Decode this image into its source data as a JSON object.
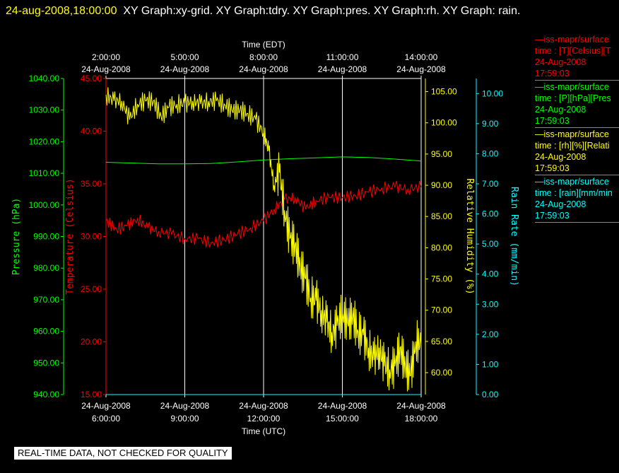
{
  "header": {
    "timestamp": "24-aug-2008,18:00:00",
    "titles": "XY Graph:xy-grid.  XY Graph:tdry.  XY Graph:pres.  XY Graph:rh.  XY Graph: rain."
  },
  "notice": "REAL-TIME DATA, NOT CHECKED FOR QUALITY",
  "legend": [
    {
      "name": "iss-mapr/surface",
      "label": "time : [T][Celsius][T",
      "date": "24-Aug-2008",
      "time": "17:59:03",
      "color": "#ff0000"
    },
    {
      "name": "iss-mapr/surface",
      "label": "time : [P][hPa][Pres",
      "date": "24-Aug-2008",
      "time": "17:59:03",
      "color": "#00ff00"
    },
    {
      "name": "iss-mapr/surface",
      "label": "time : [rh][%][Relati",
      "date": "24-Aug-2008",
      "time": "17:59:03",
      "color": "#ffff00"
    },
    {
      "name": "iss-mapr/surface",
      "label": "time : [rain][mm/min",
      "date": "24-Aug-2008",
      "time": "17:59:03",
      "color": "#00ffff"
    }
  ],
  "chart_data": {
    "type": "line",
    "xlabel_top": "Time (EDT)",
    "xlabel_bottom": "Time (UTC)",
    "x_hours_utc": [
      6,
      18
    ],
    "top_ticks": [
      {
        "t": "2:00:00",
        "d": "24-Aug-2008"
      },
      {
        "t": "5:00:00",
        "d": "24-Aug-2008"
      },
      {
        "t": "8:00:00",
        "d": "24-Aug-2008"
      },
      {
        "t": "11:00:00",
        "d": "24-Aug-2008"
      },
      {
        "t": "14:00:00",
        "d": "24-Aug-2008"
      }
    ],
    "bottom_ticks": [
      {
        "t": "6:00:00",
        "d": "24-Aug-2008"
      },
      {
        "t": "9:00:00",
        "d": "24-Aug-2008"
      },
      {
        "t": "12:00:00",
        "d": "24-Aug-2008"
      },
      {
        "t": "15:00:00",
        "d": "24-Aug-2008"
      },
      {
        "t": "18:00:00",
        "d": "24-Aug-2008"
      }
    ],
    "axes": {
      "pressure": {
        "label": "Pressure (hPa)",
        "color": "#00ff00",
        "range": [
          940,
          1040
        ],
        "ticks": [
          "1040.00",
          "1030.00",
          "1020.00",
          "1010.00",
          "1000.00",
          "990.00",
          "980.00",
          "970.00",
          "960.00",
          "950.00",
          "940.00"
        ]
      },
      "temperature": {
        "label": "Temperature (Celsius)",
        "color": "#ff0000",
        "range": [
          15,
          45
        ],
        "ticks": [
          "45.00",
          "40.00",
          "35.00",
          "30.00",
          "25.00",
          "20.00",
          "15.00"
        ]
      },
      "humidity": {
        "label": "Relative Humidity (%)",
        "color": "#ffff00",
        "range": [
          56.5,
          107.1
        ],
        "ticks": [
          "105.00",
          "100.00",
          "95.00",
          "90.00",
          "85.00",
          "80.00",
          "75.00",
          "70.00",
          "65.00",
          "60.00"
        ]
      },
      "rain": {
        "label": "Rain Rate (mm/min)",
        "color": "#00ffff",
        "range": [
          0,
          10.5
        ],
        "ticks": [
          "10.00",
          "9.00",
          "8.00",
          "7.00",
          "6.00",
          "5.00",
          "4.00",
          "3.00",
          "2.00",
          "1.00",
          "0.00"
        ]
      }
    },
    "series": [
      {
        "name": "tdry",
        "axis": "temperature",
        "color": "#ff0000",
        "x": [
          6.0,
          6.4,
          6.8,
          7.2,
          7.6,
          8.0,
          8.5,
          9.0,
          9.5,
          10.0,
          10.5,
          11.0,
          11.5,
          12.0,
          12.4,
          12.8,
          13.2,
          13.6,
          14.0,
          14.5,
          15.0,
          15.5,
          16.0,
          16.5,
          17.0,
          17.5,
          18.0
        ],
        "y": [
          31.5,
          30.7,
          31.0,
          31.7,
          30.8,
          30.5,
          30.2,
          29.8,
          29.8,
          29.4,
          29.7,
          30.2,
          30.8,
          31.5,
          32.6,
          33.5,
          33.7,
          32.6,
          33.4,
          33.7,
          33.7,
          33.9,
          34.2,
          34.6,
          34.7,
          34.5,
          34.7
        ]
      },
      {
        "name": "pres",
        "axis": "pressure",
        "color": "#00ff00",
        "x": [
          6.0,
          8.0,
          9.0,
          10.0,
          11.0,
          12.0,
          13.0,
          14.0,
          15.0,
          16.0,
          17.0,
          18.0
        ],
        "y": [
          1013.5,
          1013.0,
          1013.0,
          1013.1,
          1013.6,
          1014.2,
          1014.6,
          1014.9,
          1015.2,
          1015.0,
          1014.5,
          1013.9
        ]
      },
      {
        "name": "rh",
        "axis": "humidity",
        "color": "#ffff00",
        "x": [
          6.0,
          6.3,
          6.6,
          6.9,
          7.2,
          7.5,
          7.8,
          8.1,
          8.4,
          8.7,
          9.0,
          9.3,
          9.6,
          9.9,
          10.2,
          10.5,
          10.8,
          11.1,
          11.4,
          11.7,
          12.0,
          12.2,
          12.4,
          12.6,
          12.8,
          13.0,
          13.2,
          13.4,
          13.6,
          13.8,
          14.0,
          14.2,
          14.4,
          14.6,
          14.8,
          15.0,
          15.2,
          15.4,
          15.6,
          15.8,
          16.0,
          16.2,
          16.4,
          16.6,
          16.8,
          17.0,
          17.2,
          17.4,
          17.6,
          17.8,
          18.0
        ],
        "y": [
          104.5,
          103.5,
          103.5,
          100.5,
          103.0,
          103.5,
          103.5,
          101.0,
          102.5,
          103.0,
          103.0,
          103.5,
          103.0,
          103.5,
          103.5,
          103.0,
          102.0,
          102.0,
          101.5,
          100.5,
          98.5,
          95.5,
          90.0,
          92.0,
          86.0,
          81.5,
          80.5,
          77.0,
          75.0,
          72.0,
          71.5,
          70.0,
          68.0,
          66.5,
          67.5,
          69.5,
          68.0,
          69.0,
          66.5,
          66.0,
          64.0,
          62.0,
          64.0,
          61.0,
          60.5,
          61.0,
          64.0,
          61.0,
          59.5,
          65.0,
          64.5
        ]
      },
      {
        "name": "rain",
        "axis": "rain",
        "color": "#00ffff",
        "x": [
          6.0,
          18.0
        ],
        "y": [
          0.0,
          0.0
        ]
      }
    ]
  }
}
